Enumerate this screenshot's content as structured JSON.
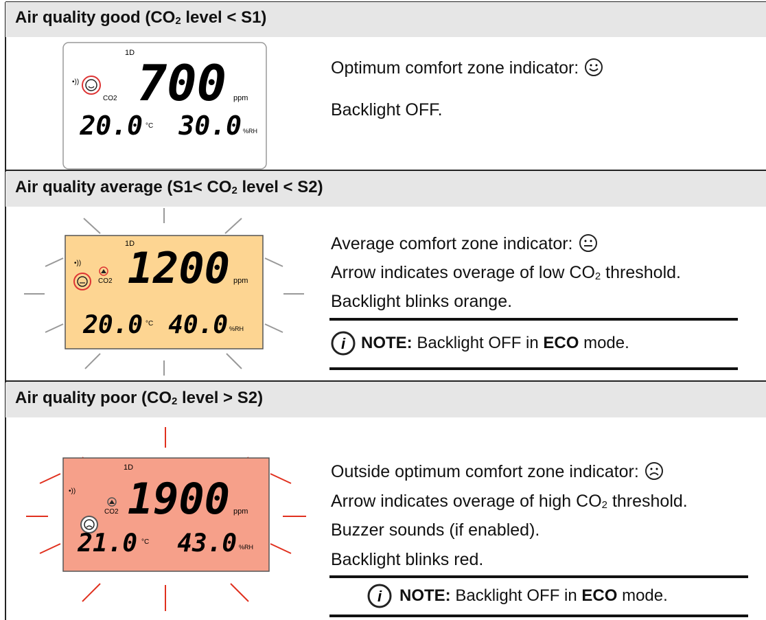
{
  "sections": [
    {
      "header": {
        "pre": "Air quality good (CO",
        "sub": "2",
        "post": " level < S1)"
      },
      "display": {
        "mode": "1D",
        "gas": "CO2",
        "co2": "700",
        "co2_unit": "ppm",
        "temp": "20.0",
        "temp_unit": "°C",
        "rh": "30.0",
        "rh_unit": "%RH"
      },
      "lines": [
        "Optimum comfort zone indicator:",
        "Backlight OFF."
      ]
    },
    {
      "header": {
        "pre": "Air quality average (S1< CO",
        "sub": "2",
        "post": " level < S2)"
      },
      "display": {
        "mode": "1D",
        "gas": "CO2",
        "co2": "1200",
        "co2_unit": "ppm",
        "temp": "20.0",
        "temp_unit": "°C",
        "rh": "40.0",
        "rh_unit": "%RH"
      },
      "lines": [
        "Average comfort zone indicator:",
        {
          "pre": "Arrow indicates overage of low CO",
          "sub": "2",
          "post": " threshold."
        },
        "Backlight blinks orange."
      ],
      "note": {
        "label": "NOTE:",
        "text1": " Backlight OFF in ",
        "bold": "ECO",
        "text2": " mode."
      }
    },
    {
      "header": {
        "pre": "Air quality poor (CO",
        "sub": "2",
        "post": " level > S2)"
      },
      "display": {
        "mode": "1D",
        "gas": "CO2",
        "co2": "1900",
        "co2_unit": "ppm",
        "temp": "21.0",
        "temp_unit": "°C",
        "rh": "43.0",
        "rh_unit": "%RH"
      },
      "lines": [
        "Outside optimum comfort zone indicator:",
        {
          "pre": "Arrow indicates overage of high CO",
          "sub": "2",
          "post": " threshold."
        },
        "Buzzer sounds (if enabled).",
        "Backlight blinks red."
      ],
      "note": {
        "label": "NOTE:",
        "text1": " Backlight OFF in ",
        "bold": "ECO",
        "text2": " mode."
      }
    }
  ]
}
